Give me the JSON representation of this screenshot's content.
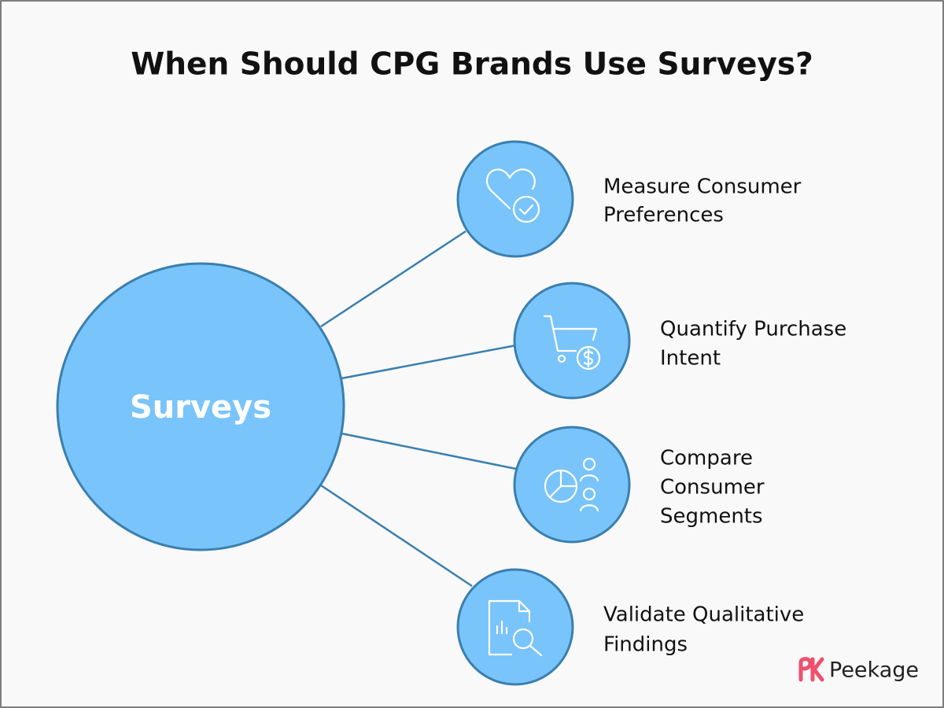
{
  "title": "When Should CPG Brands Use Surveys?",
  "center": {
    "label": "Surveys"
  },
  "nodes": [
    {
      "lines": [
        "Measure Consumer",
        "Preferences"
      ]
    },
    {
      "lines": [
        "Quantify Purchase",
        "Intent"
      ]
    },
    {
      "lines": [
        "Compare",
        "Consumer",
        "Segments"
      ]
    },
    {
      "lines": [
        "Validate Qualitative",
        "Findings"
      ]
    }
  ],
  "brand": "Peekage"
}
